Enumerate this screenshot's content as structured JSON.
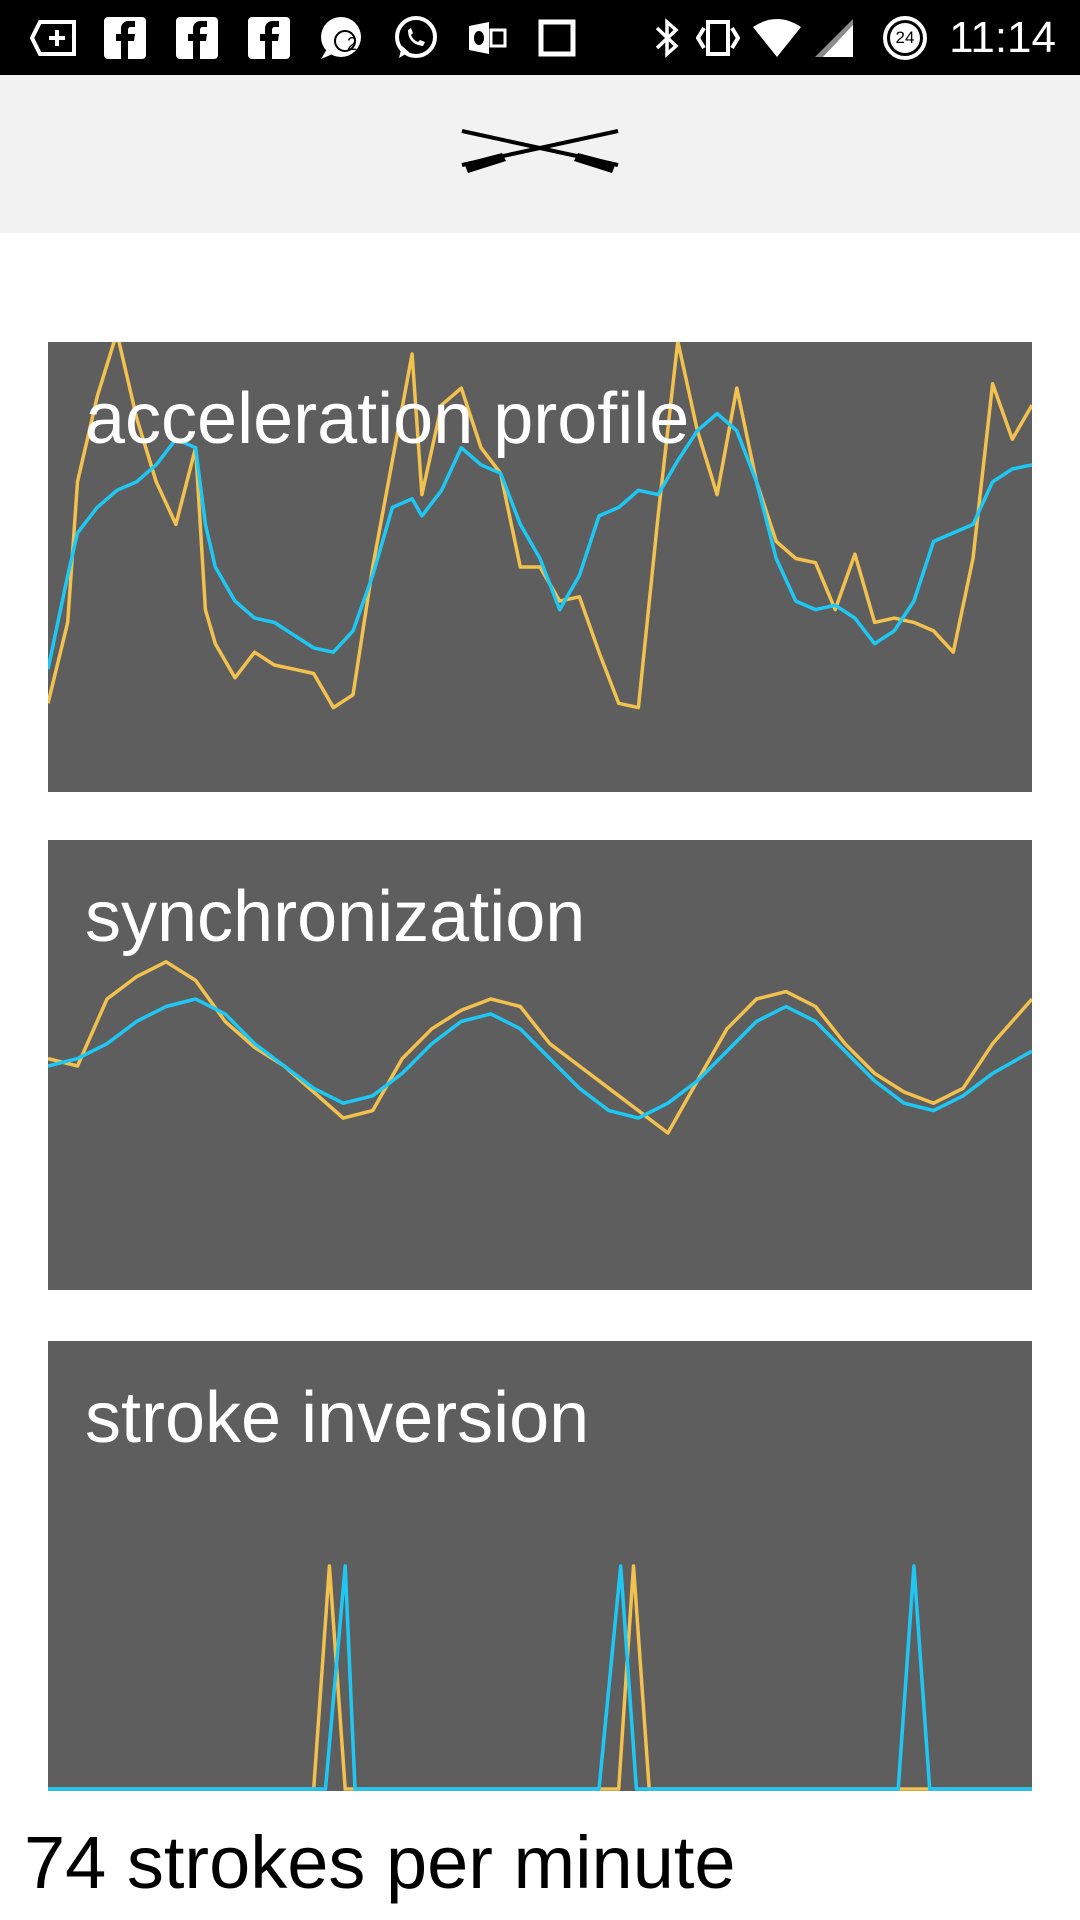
{
  "status_bar": {
    "time": "11:14",
    "notification_count": "2",
    "data_saver_count": "24",
    "icons": [
      "add-box-icon",
      "facebook-icon",
      "facebook-icon",
      "facebook-icon",
      "chat-bubble-icon",
      "whatsapp-icon",
      "outlook-icon",
      "square-icon",
      "bluetooth-icon",
      "vibrate-icon",
      "wifi-icon",
      "signal-icon",
      "data-saver-icon"
    ]
  },
  "app_bar": {
    "logo": "crossed-oars-icon"
  },
  "colors": {
    "series_a": "#f2c14e",
    "series_b": "#1ec8f5",
    "panel_bg": "#5e5e5e"
  },
  "panels": [
    {
      "title": "acceleration profile"
    },
    {
      "title": "synchronization"
    },
    {
      "title": "stroke inversion"
    }
  ],
  "chart_data": [
    {
      "type": "line",
      "title": "acceleration profile",
      "ylim": [
        0,
        100
      ],
      "xlim": [
        0,
        100
      ],
      "series": [
        {
          "color": "#f2c14e",
          "x": [
            0,
            2,
            3,
            5,
            7,
            9,
            11,
            13,
            15,
            16,
            17,
            19,
            21,
            23,
            25,
            27,
            29,
            31,
            33,
            35,
            37,
            38,
            40,
            42,
            44,
            46,
            48,
            50,
            52,
            54,
            56,
            58,
            60,
            62,
            64,
            66,
            68,
            70,
            72,
            74,
            76,
            78,
            80,
            82,
            84,
            86,
            88,
            90,
            92,
            94,
            96,
            98,
            100
          ],
          "y": [
            18,
            37,
            70,
            90,
            105,
            85,
            70,
            60,
            78,
            40,
            32,
            24,
            30,
            27,
            26,
            25,
            17,
            20,
            50,
            75,
            100,
            67,
            88,
            92,
            78,
            72,
            50,
            50,
            42,
            43,
            30,
            18,
            17,
            62,
            103,
            82,
            67,
            92,
            70,
            56,
            52,
            51,
            40,
            53,
            37,
            38,
            37,
            35,
            30,
            52,
            93,
            80,
            88
          ]
        },
        {
          "color": "#1ec8f5",
          "x": [
            0,
            2,
            3,
            5,
            7,
            9,
            11,
            13,
            15,
            16,
            17,
            19,
            21,
            23,
            25,
            27,
            29,
            31,
            33,
            35,
            37,
            38,
            40,
            42,
            44,
            46,
            48,
            50,
            52,
            54,
            56,
            58,
            60,
            62,
            64,
            66,
            68,
            70,
            72,
            74,
            76,
            78,
            80,
            82,
            84,
            86,
            88,
            90,
            92,
            94,
            96,
            98,
            100
          ],
          "y": [
            26,
            48,
            58,
            64,
            68,
            70,
            74,
            80,
            78,
            60,
            50,
            42,
            38,
            37,
            34,
            31,
            30,
            35,
            48,
            64,
            66,
            62,
            68,
            78,
            74,
            72,
            60,
            52,
            40,
            48,
            62,
            64,
            68,
            67,
            75,
            82,
            86,
            82,
            70,
            52,
            42,
            40,
            41,
            38,
            32,
            35,
            42,
            56,
            58,
            60,
            70,
            73,
            74
          ]
        }
      ]
    },
    {
      "type": "line",
      "title": "synchronization",
      "ylim": [
        0,
        100
      ],
      "xlim": [
        0,
        100
      ],
      "series": [
        {
          "color": "#f2c14e",
          "x": [
            0,
            3,
            6,
            9,
            12,
            15,
            18,
            21,
            24,
            27,
            30,
            33,
            36,
            39,
            42,
            45,
            48,
            51,
            54,
            57,
            60,
            63,
            66,
            69,
            72,
            75,
            78,
            81,
            84,
            87,
            90,
            93,
            96,
            100
          ],
          "y": [
            52,
            50,
            68,
            74,
            78,
            73,
            62,
            55,
            50,
            43,
            36,
            38,
            52,
            60,
            65,
            68,
            66,
            56,
            50,
            44,
            38,
            32,
            46,
            60,
            68,
            70,
            66,
            56,
            48,
            43,
            40,
            44,
            56,
            68
          ]
        },
        {
          "color": "#1ec8f5",
          "x": [
            0,
            3,
            6,
            9,
            12,
            15,
            18,
            21,
            24,
            27,
            30,
            33,
            36,
            39,
            42,
            45,
            48,
            51,
            54,
            57,
            60,
            63,
            66,
            69,
            72,
            75,
            78,
            81,
            84,
            87,
            90,
            93,
            96,
            100
          ],
          "y": [
            50,
            52,
            56,
            62,
            66,
            68,
            64,
            56,
            50,
            44,
            40,
            42,
            48,
            56,
            62,
            64,
            60,
            52,
            44,
            38,
            36,
            40,
            46,
            54,
            62,
            66,
            62,
            54,
            46,
            40,
            38,
            42,
            48,
            54
          ]
        }
      ]
    },
    {
      "type": "line",
      "title": "stroke inversion",
      "ylim": [
        0,
        1
      ],
      "xlim": [
        0,
        100
      ],
      "series": [
        {
          "color": "#f2c14e",
          "x": [
            0,
            27,
            28.6,
            30.2,
            58,
            59.5,
            61.1,
            100
          ],
          "y": [
            0,
            0,
            1,
            0,
            0,
            1,
            0,
            0
          ]
        },
        {
          "color": "#1ec8f5",
          "x": [
            0,
            28.2,
            30.2,
            31.2,
            56,
            58.2,
            59.8,
            86.4,
            88,
            89.6,
            100
          ],
          "y": [
            0,
            0,
            1,
            0,
            0,
            1,
            0,
            0,
            1,
            0,
            0
          ]
        }
      ]
    }
  ],
  "footer": {
    "strokes_per_minute": "74 strokes per minute"
  }
}
